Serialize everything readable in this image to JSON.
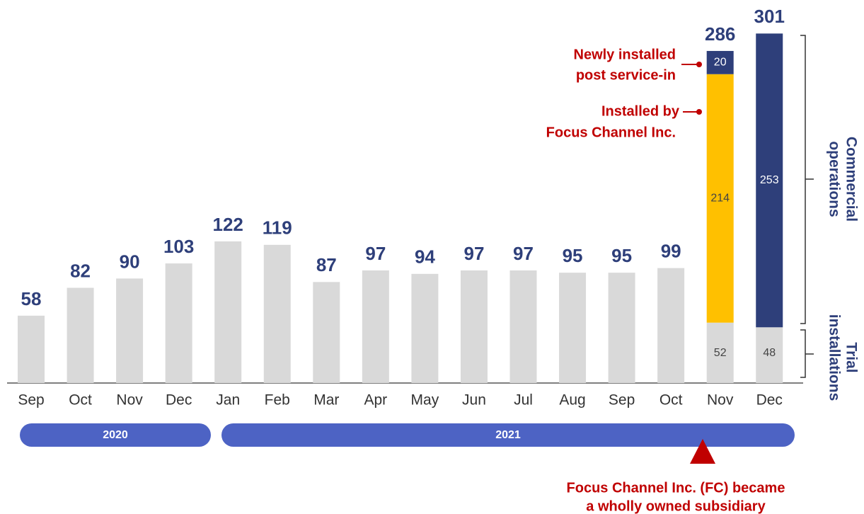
{
  "chart_data": {
    "type": "stacked_bar",
    "categories": [
      "Sep",
      "Oct",
      "Nov",
      "Dec",
      "Jan",
      "Feb",
      "Mar",
      "Apr",
      "May",
      "Jun",
      "Jul",
      "Aug",
      "Sep",
      "Oct",
      "Nov",
      "Dec"
    ],
    "series": [
      {
        "name": "Trial installations",
        "color": "#d9d9d9",
        "values": [
          58,
          82,
          90,
          103,
          122,
          119,
          87,
          97,
          94,
          97,
          97,
          95,
          95,
          99,
          52,
          48
        ]
      },
      {
        "name": "Installed by Focus Channel Inc.",
        "color": "#ffc000",
        "values": [
          null,
          null,
          null,
          null,
          null,
          null,
          null,
          null,
          null,
          null,
          null,
          null,
          null,
          null,
          214,
          null
        ]
      },
      {
        "name": "Newly installed post service-in",
        "color": "#2e3f7a",
        "values": [
          null,
          null,
          null,
          null,
          null,
          null,
          null,
          null,
          null,
          null,
          null,
          null,
          null,
          null,
          20,
          253
        ]
      }
    ],
    "totals": [
      null,
      null,
      null,
      null,
      null,
      null,
      null,
      null,
      null,
      null,
      null,
      null,
      null,
      null,
      286,
      301
    ],
    "callouts": [
      [
        "Newly installed",
        "post service-in"
      ],
      [
        "Installed by",
        "Focus Channel Inc."
      ]
    ],
    "brackets": [
      [
        "Commercial",
        "operations"
      ],
      [
        "Trial",
        "installations"
      ]
    ],
    "years": [
      "2020",
      "2021"
    ],
    "annotation": [
      "Focus Channel Inc. (FC) became",
      "a wholly owned subsidiary"
    ]
  }
}
